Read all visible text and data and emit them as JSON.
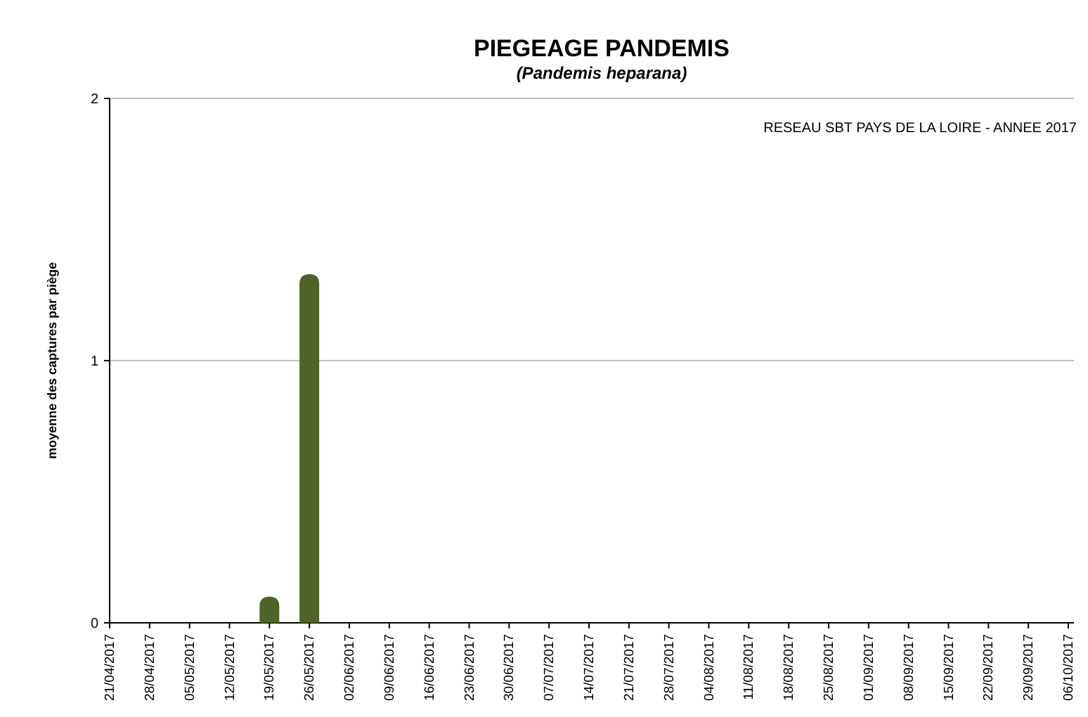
{
  "chart_data": {
    "type": "bar",
    "title": "PIEGEAGE PANDEMIS",
    "subtitle": "(Pandemis heparana)",
    "ylabel": "moyenne des captures par piège",
    "annotations": [
      "RESEAU SBT PAYS DE LA LOIRE - ANNEE 2017"
    ],
    "categories": [
      "21/04/2017",
      "28/04/2017",
      "05/05/2017",
      "12/05/2017",
      "19/05/2017",
      "26/05/2017",
      "02/06/2017",
      "09/06/2017",
      "16/06/2017",
      "23/06/2017",
      "30/06/2017",
      "07/07/2017",
      "14/07/2017",
      "21/07/2017",
      "28/07/2017",
      "04/08/2017",
      "11/08/2017",
      "18/08/2017",
      "25/08/2017",
      "01/09/2017",
      "08/09/2017",
      "15/09/2017",
      "22/09/2017",
      "29/09/2017",
      "06/10/2017"
    ],
    "values": [
      0,
      0,
      0,
      0,
      0.1,
      1.33,
      0,
      0,
      0,
      0,
      0,
      0,
      0,
      0,
      0,
      0,
      0,
      0,
      0,
      0,
      0,
      0,
      0,
      0,
      0
    ],
    "color": "#4f6228",
    "ylim": [
      0,
      2
    ],
    "yticks": [
      0,
      1,
      2
    ],
    "grid": "y"
  }
}
